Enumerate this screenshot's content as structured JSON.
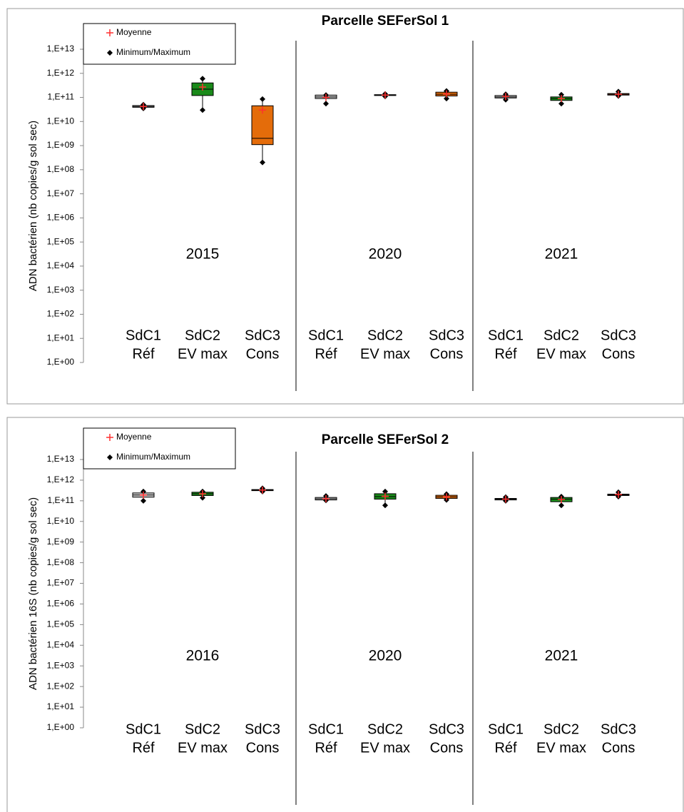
{
  "chart_data": [
    {
      "type": "box",
      "title": "Parcelle SEFerSol 1",
      "y_label": "ADN bactérien (nb copies/g sol sec)",
      "log_scale": true,
      "ylim": [
        1,
        10000000000000
      ],
      "yticks": [
        {
          "value": 1,
          "label": "1,E+00"
        },
        {
          "value": 10,
          "label": "1,E+01"
        },
        {
          "value": 100,
          "label": "1,E+02"
        },
        {
          "value": 1000,
          "label": "1,E+03"
        },
        {
          "value": 10000,
          "label": "1,E+04"
        },
        {
          "value": 100000,
          "label": "1,E+05"
        },
        {
          "value": 1000000,
          "label": "1,E+06"
        },
        {
          "value": 10000000,
          "label": "1,E+07"
        },
        {
          "value": 100000000,
          "label": "1,E+08"
        },
        {
          "value": 1000000000,
          "label": "1,E+09"
        },
        {
          "value": 10000000000,
          "label": "1,E+10"
        },
        {
          "value": 100000000000,
          "label": "1,E+11"
        },
        {
          "value": 1000000000000,
          "label": "1,E+12"
        },
        {
          "value": 10000000000000,
          "label": "1,E+13"
        }
      ],
      "legend": [
        "Moyenne",
        "Minimum/Maximum"
      ],
      "groups": [
        "2015",
        "2020",
        "2021"
      ],
      "categories": [
        [
          "SdC1",
          "Réf"
        ],
        [
          "SdC2",
          "EV max"
        ],
        [
          "SdC3",
          "Cons"
        ],
        [
          "SdC1",
          "Réf"
        ],
        [
          "SdC2",
          "EV max"
        ],
        [
          "SdC3",
          "Cons"
        ],
        [
          "SdC1",
          "Réf"
        ],
        [
          "SdC2",
          "EV max"
        ],
        [
          "SdC3",
          "Cons"
        ]
      ],
      "boxes": [
        {
          "min": 35000000000,
          "q1": 39000000000,
          "median": 42000000000,
          "q3": 46000000000,
          "max": 50000000000,
          "mean": 42000000000,
          "color": "#c8c8c8"
        },
        {
          "min": 30000000000,
          "q1": 120000000000,
          "median": 220000000000,
          "q3": 400000000000,
          "max": 600000000000,
          "mean": 270000000000,
          "color": "#1a8a1a"
        },
        {
          "min": 200000000,
          "q1": 1100000000,
          "median": 2000000000,
          "q3": 45000000000,
          "max": 85000000000,
          "mean": 30000000000,
          "color": "#e46c0a"
        },
        {
          "min": 55000000000,
          "q1": 90000000000,
          "median": 105000000000,
          "q3": 125000000000,
          "max": 125000000000,
          "mean": 100000000000,
          "color": "#c8c8c8"
        },
        {
          "min": 110000000000,
          "q1": 120000000000,
          "median": 125000000000,
          "q3": 130000000000,
          "max": 140000000000,
          "mean": 125000000000,
          "color": "#1a8a1a"
        },
        {
          "min": 90000000000,
          "q1": 115000000000,
          "median": 135000000000,
          "q3": 165000000000,
          "max": 185000000000,
          "mean": 140000000000,
          "color": "#e46c0a"
        },
        {
          "min": 80000000000,
          "q1": 95000000000,
          "median": 105000000000,
          "q3": 120000000000,
          "max": 135000000000,
          "mean": 110000000000,
          "color": "#c8c8c8"
        },
        {
          "min": 55000000000,
          "q1": 75000000000,
          "median": 90000000000,
          "q3": 105000000000,
          "max": 130000000000,
          "mean": 90000000000,
          "color": "#1a8a1a"
        },
        {
          "min": 115000000000,
          "q1": 125000000000,
          "median": 135000000000,
          "q3": 145000000000,
          "max": 175000000000,
          "mean": 135000000000,
          "color": "#e46c0a"
        }
      ]
    },
    {
      "type": "box",
      "title": "Parcelle SEFerSol 2",
      "y_label": "ADN bactérien 16S (nb copies/g sol sec)",
      "log_scale": true,
      "ylim": [
        1,
        10000000000000
      ],
      "yticks": [
        {
          "value": 1,
          "label": "1,E+00"
        },
        {
          "value": 10,
          "label": "1,E+01"
        },
        {
          "value": 100,
          "label": "1,E+02"
        },
        {
          "value": 1000,
          "label": "1,E+03"
        },
        {
          "value": 10000,
          "label": "1,E+04"
        },
        {
          "value": 100000,
          "label": "1,E+05"
        },
        {
          "value": 1000000,
          "label": "1,E+06"
        },
        {
          "value": 10000000,
          "label": "1,E+07"
        },
        {
          "value": 100000000,
          "label": "1,E+08"
        },
        {
          "value": 1000000000,
          "label": "1,E+09"
        },
        {
          "value": 10000000000,
          "label": "1,E+10"
        },
        {
          "value": 100000000000,
          "label": "1,E+11"
        },
        {
          "value": 1000000000000,
          "label": "1,E+12"
        },
        {
          "value": 10000000000000,
          "label": "1,E+13"
        }
      ],
      "legend": [
        "Moyenne",
        "Minimum/Maximum"
      ],
      "groups": [
        "2016",
        "2020",
        "2021"
      ],
      "categories": [
        [
          "SdC1",
          "Réf"
        ],
        [
          "SdC2",
          "EV max"
        ],
        [
          "SdC3",
          "Cons"
        ],
        [
          "SdC1",
          "Réf"
        ],
        [
          "SdC2",
          "EV max"
        ],
        [
          "SdC3",
          "Cons"
        ],
        [
          "SdC1",
          "Réf"
        ],
        [
          "SdC2",
          "EV max"
        ],
        [
          "SdC3",
          "Cons"
        ]
      ],
      "boxes": [
        {
          "min": 100000000000,
          "q1": 150000000000,
          "median": 190000000000,
          "q3": 240000000000,
          "max": 280000000000,
          "mean": 190000000000,
          "color": "#c8c8c8"
        },
        {
          "min": 140000000000,
          "q1": 180000000000,
          "median": 220000000000,
          "q3": 260000000000,
          "max": 280000000000,
          "mean": 220000000000,
          "color": "#1a8a1a"
        },
        {
          "min": 280000000000,
          "q1": 310000000000,
          "median": 330000000000,
          "q3": 350000000000,
          "max": 400000000000,
          "mean": 330000000000,
          "color": "#e46c0a"
        },
        {
          "min": 105000000000,
          "q1": 110000000000,
          "median": 125000000000,
          "q3": 145000000000,
          "max": 170000000000,
          "mean": 125000000000,
          "color": "#c8c8c8"
        },
        {
          "min": 60000000000,
          "q1": 120000000000,
          "median": 160000000000,
          "q3": 220000000000,
          "max": 280000000000,
          "mean": 165000000000,
          "color": "#1a8a1a"
        },
        {
          "min": 110000000000,
          "q1": 130000000000,
          "median": 155000000000,
          "q3": 185000000000,
          "max": 210000000000,
          "mean": 155000000000,
          "color": "#e46c0a"
        },
        {
          "min": 100000000000,
          "q1": 110000000000,
          "median": 120000000000,
          "q3": 130000000000,
          "max": 150000000000,
          "mean": 120000000000,
          "color": "#c8c8c8"
        },
        {
          "min": 60000000000,
          "q1": 90000000000,
          "median": 120000000000,
          "q3": 145000000000,
          "max": 160000000000,
          "mean": 115000000000,
          "color": "#1a8a1a"
        },
        {
          "min": 160000000000,
          "q1": 180000000000,
          "median": 195000000000,
          "q3": 210000000000,
          "max": 260000000000,
          "mean": 200000000000,
          "color": "#e46c0a"
        }
      ]
    }
  ]
}
